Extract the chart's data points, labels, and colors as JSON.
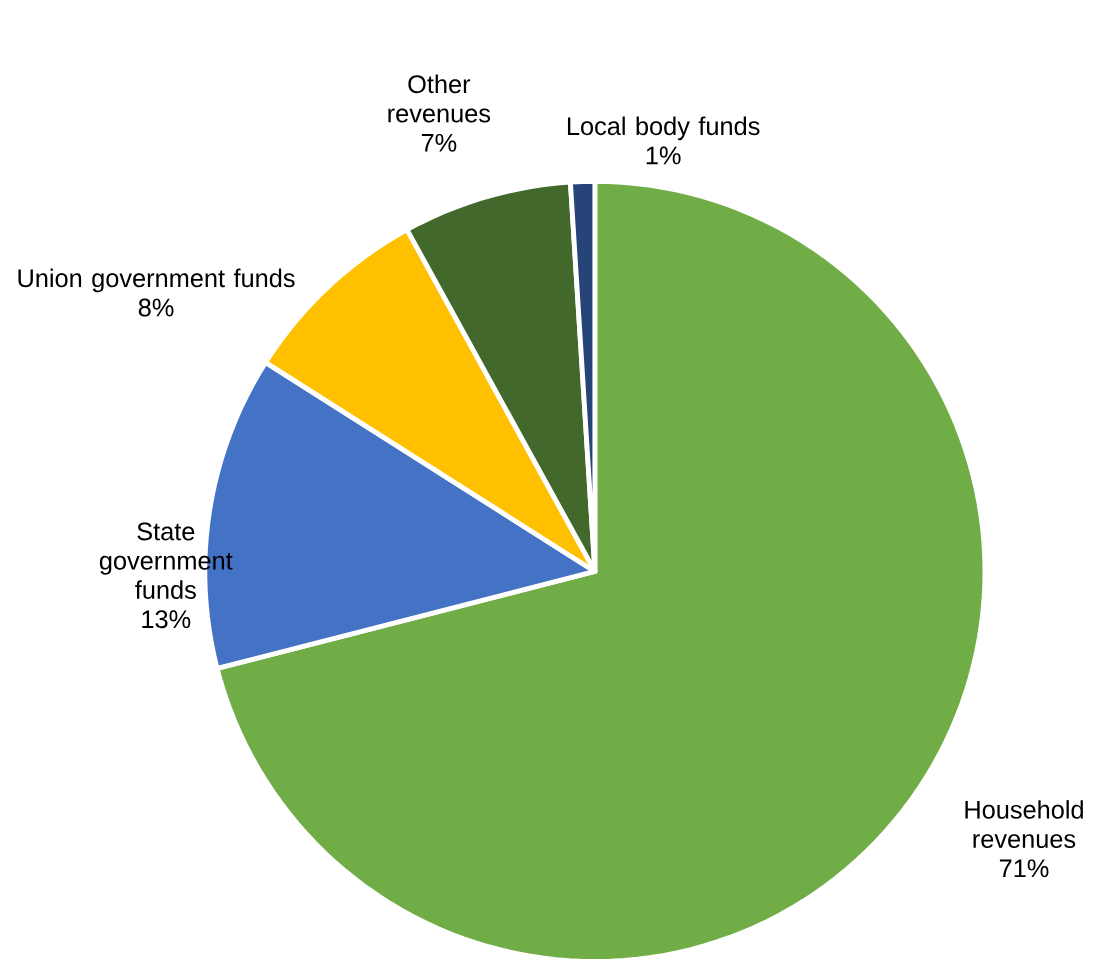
{
  "chart_data": {
    "type": "pie",
    "categories": [
      "Household revenues",
      "State government funds",
      "Union government funds",
      "Other revenues",
      "Local body funds"
    ],
    "values": [
      71,
      13,
      8,
      7,
      1
    ],
    "value_labels": [
      "71%",
      "13%",
      "8%",
      "7%",
      "1%"
    ],
    "colors": [
      "#70ad47",
      "#4472c4",
      "#ffc000",
      "#43682b",
      "#264478"
    ]
  }
}
